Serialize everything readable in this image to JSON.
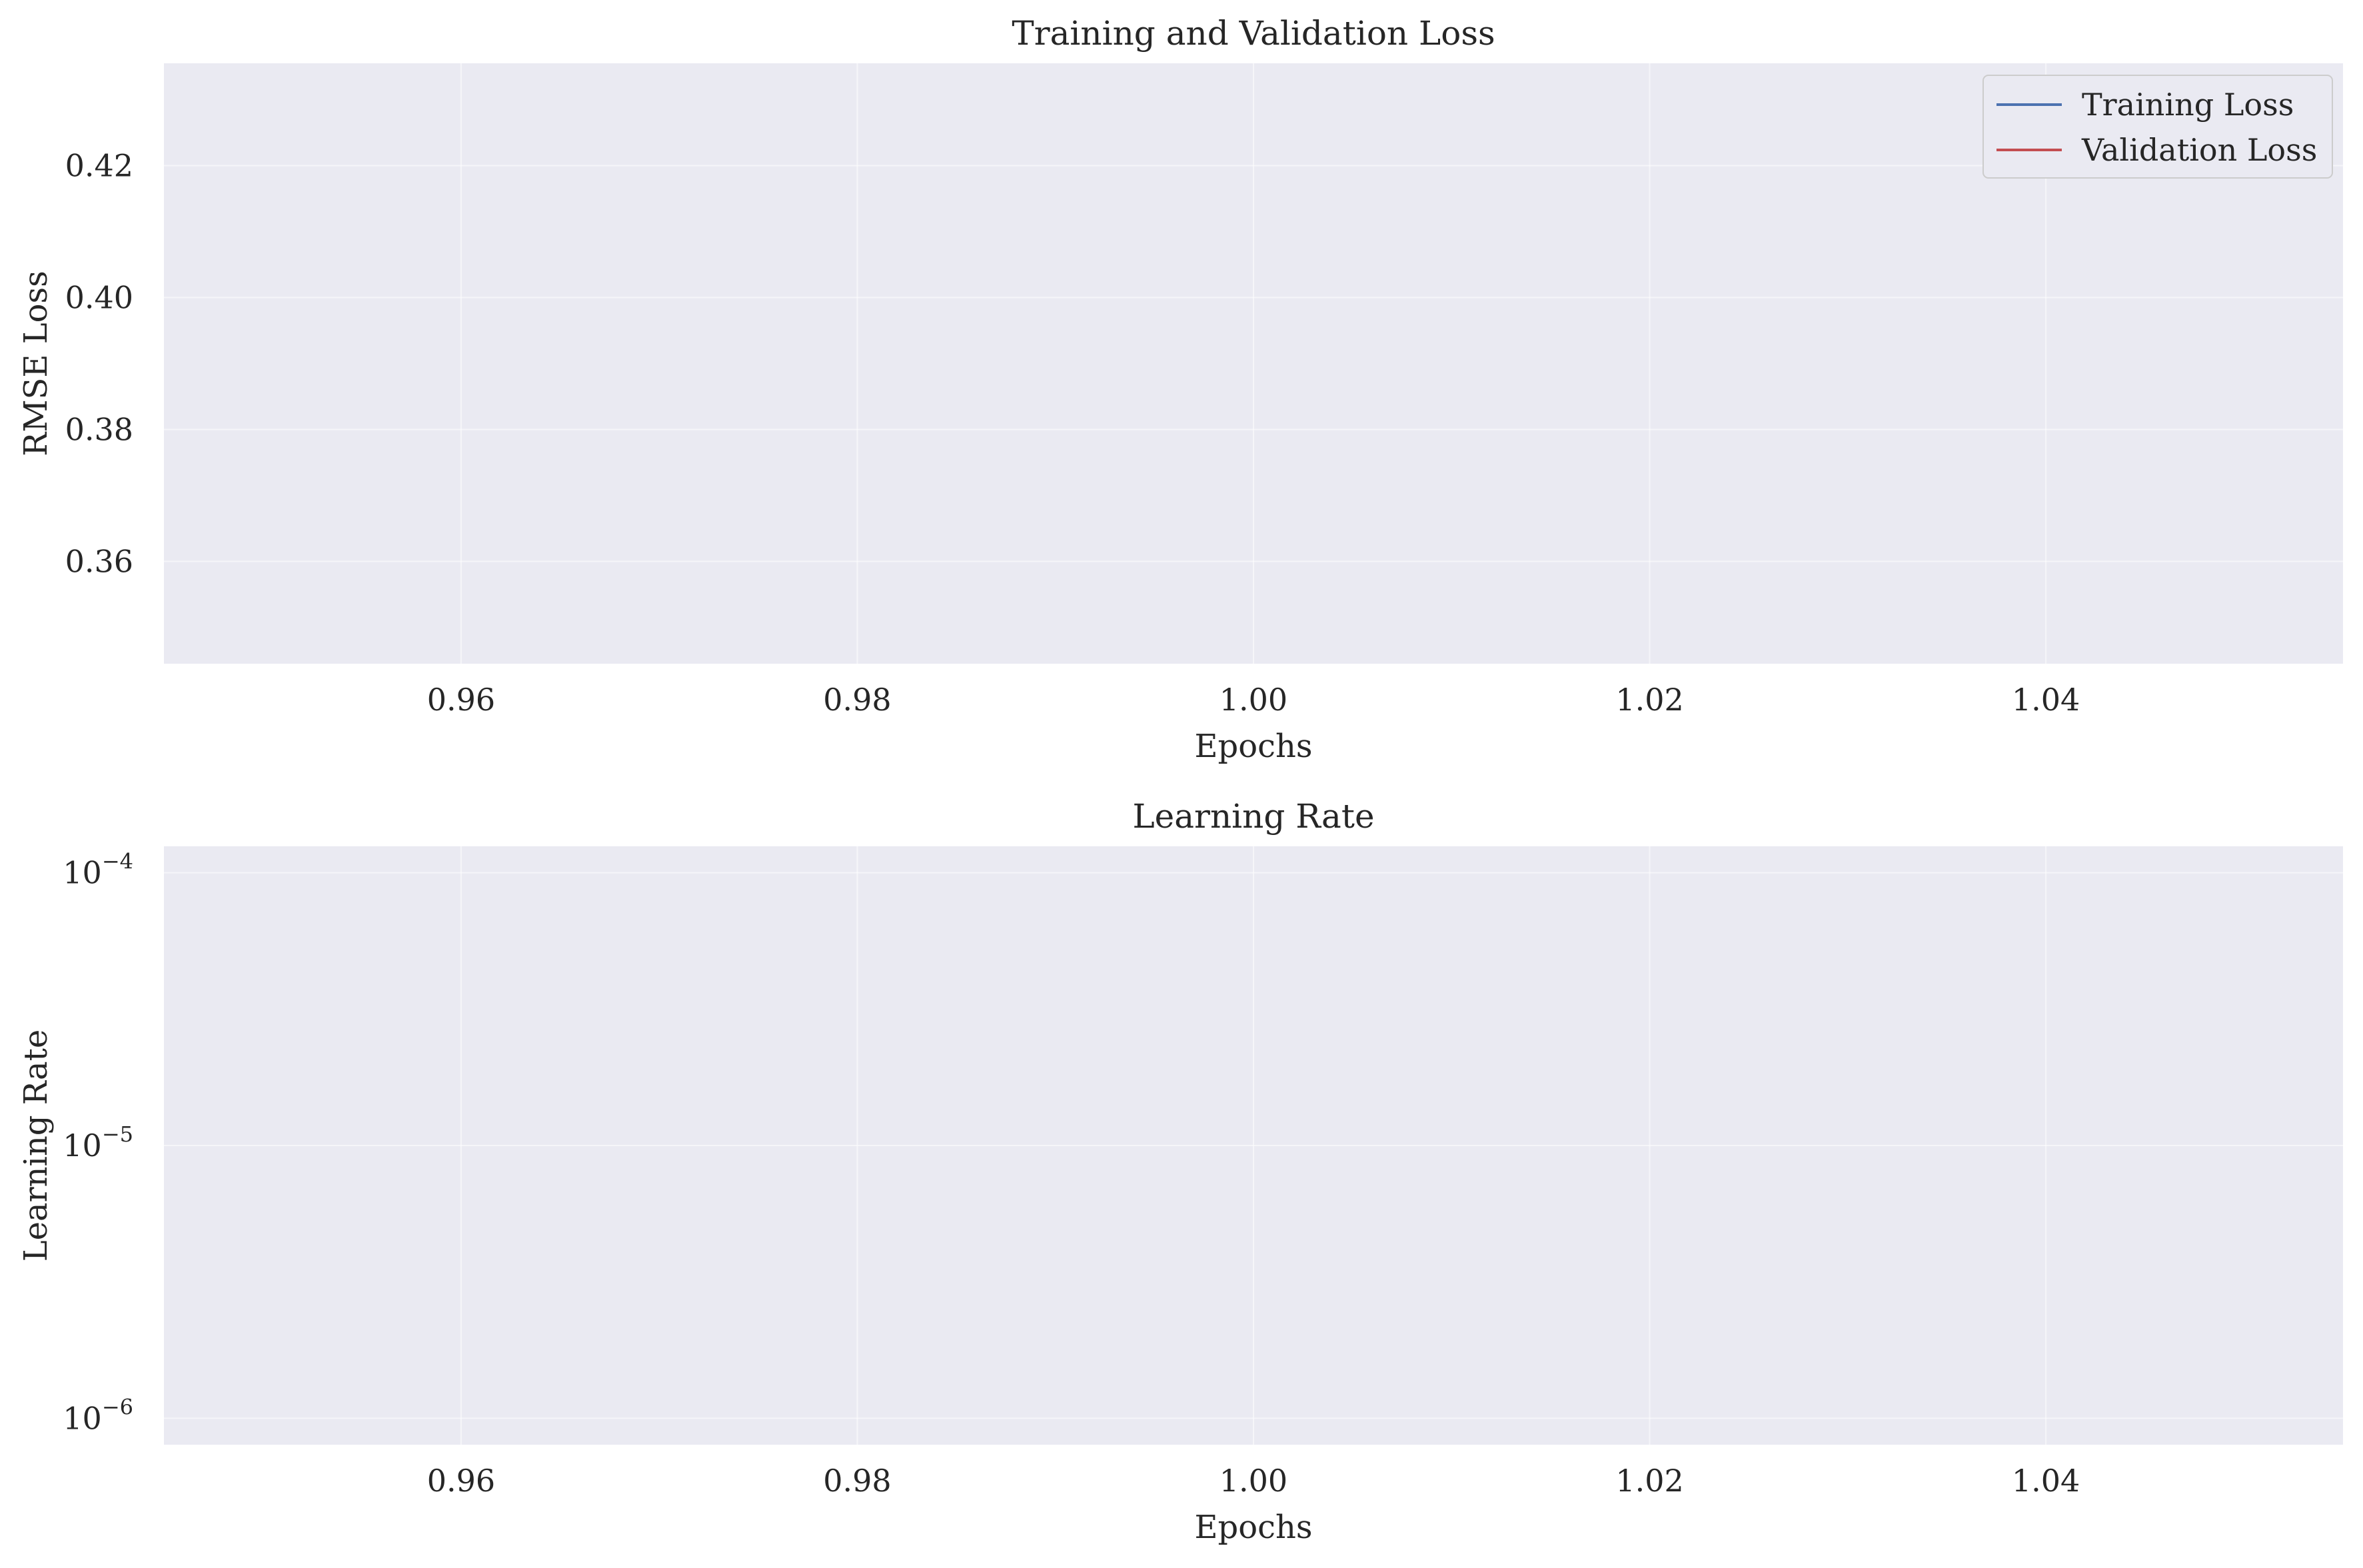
{
  "chart_data": [
    {
      "type": "line",
      "title": "Training and Validation Loss",
      "xlabel": "Epochs",
      "ylabel": "RMSE Loss",
      "xlim": [
        0.945,
        1.055
      ],
      "ylim": [
        0.3445,
        0.4355
      ],
      "x_ticks": [
        0.96,
        0.98,
        1.0,
        1.02,
        1.04
      ],
      "x_tick_labels": [
        "0.96",
        "0.98",
        "1.00",
        "1.02",
        "1.04"
      ],
      "y_ticks": [
        0.36,
        0.38,
        0.4,
        0.42
      ],
      "y_tick_labels": [
        "0.36",
        "0.38",
        "0.40",
        "0.42"
      ],
      "y_scale": "linear",
      "grid": true,
      "legend": {
        "placement": "upper right"
      },
      "x": [
        1
      ],
      "series": [
        {
          "name": "Training Loss",
          "color": "#4c72b0",
          "values": [
            null
          ]
        },
        {
          "name": "Validation Loss",
          "color": "#c44e52",
          "values": [
            null
          ]
        }
      ]
    },
    {
      "type": "line",
      "title": "Learning Rate",
      "xlabel": "Epochs",
      "ylabel": "Learning Rate",
      "xlim": [
        0.945,
        1.055
      ],
      "ylim": [
        8e-07,
        0.000125
      ],
      "x_ticks": [
        0.96,
        0.98,
        1.0,
        1.02,
        1.04
      ],
      "x_tick_labels": [
        "0.96",
        "0.98",
        "1.00",
        "1.02",
        "1.04"
      ],
      "y_ticks": [
        1e-06,
        1e-05,
        0.0001
      ],
      "y_tick_labels": [
        {
          "base": "10",
          "exp": "−6"
        },
        {
          "base": "10",
          "exp": "−5"
        },
        {
          "base": "10",
          "exp": "−4"
        }
      ],
      "y_scale": "log",
      "grid": true,
      "x": [
        1
      ],
      "series": [
        {
          "color": "#4c72b0",
          "values": [
            null
          ]
        }
      ]
    }
  ],
  "colors": {
    "axes_bg": "#eaeaf2",
    "grid": "#ffffff",
    "text": "#262626"
  }
}
